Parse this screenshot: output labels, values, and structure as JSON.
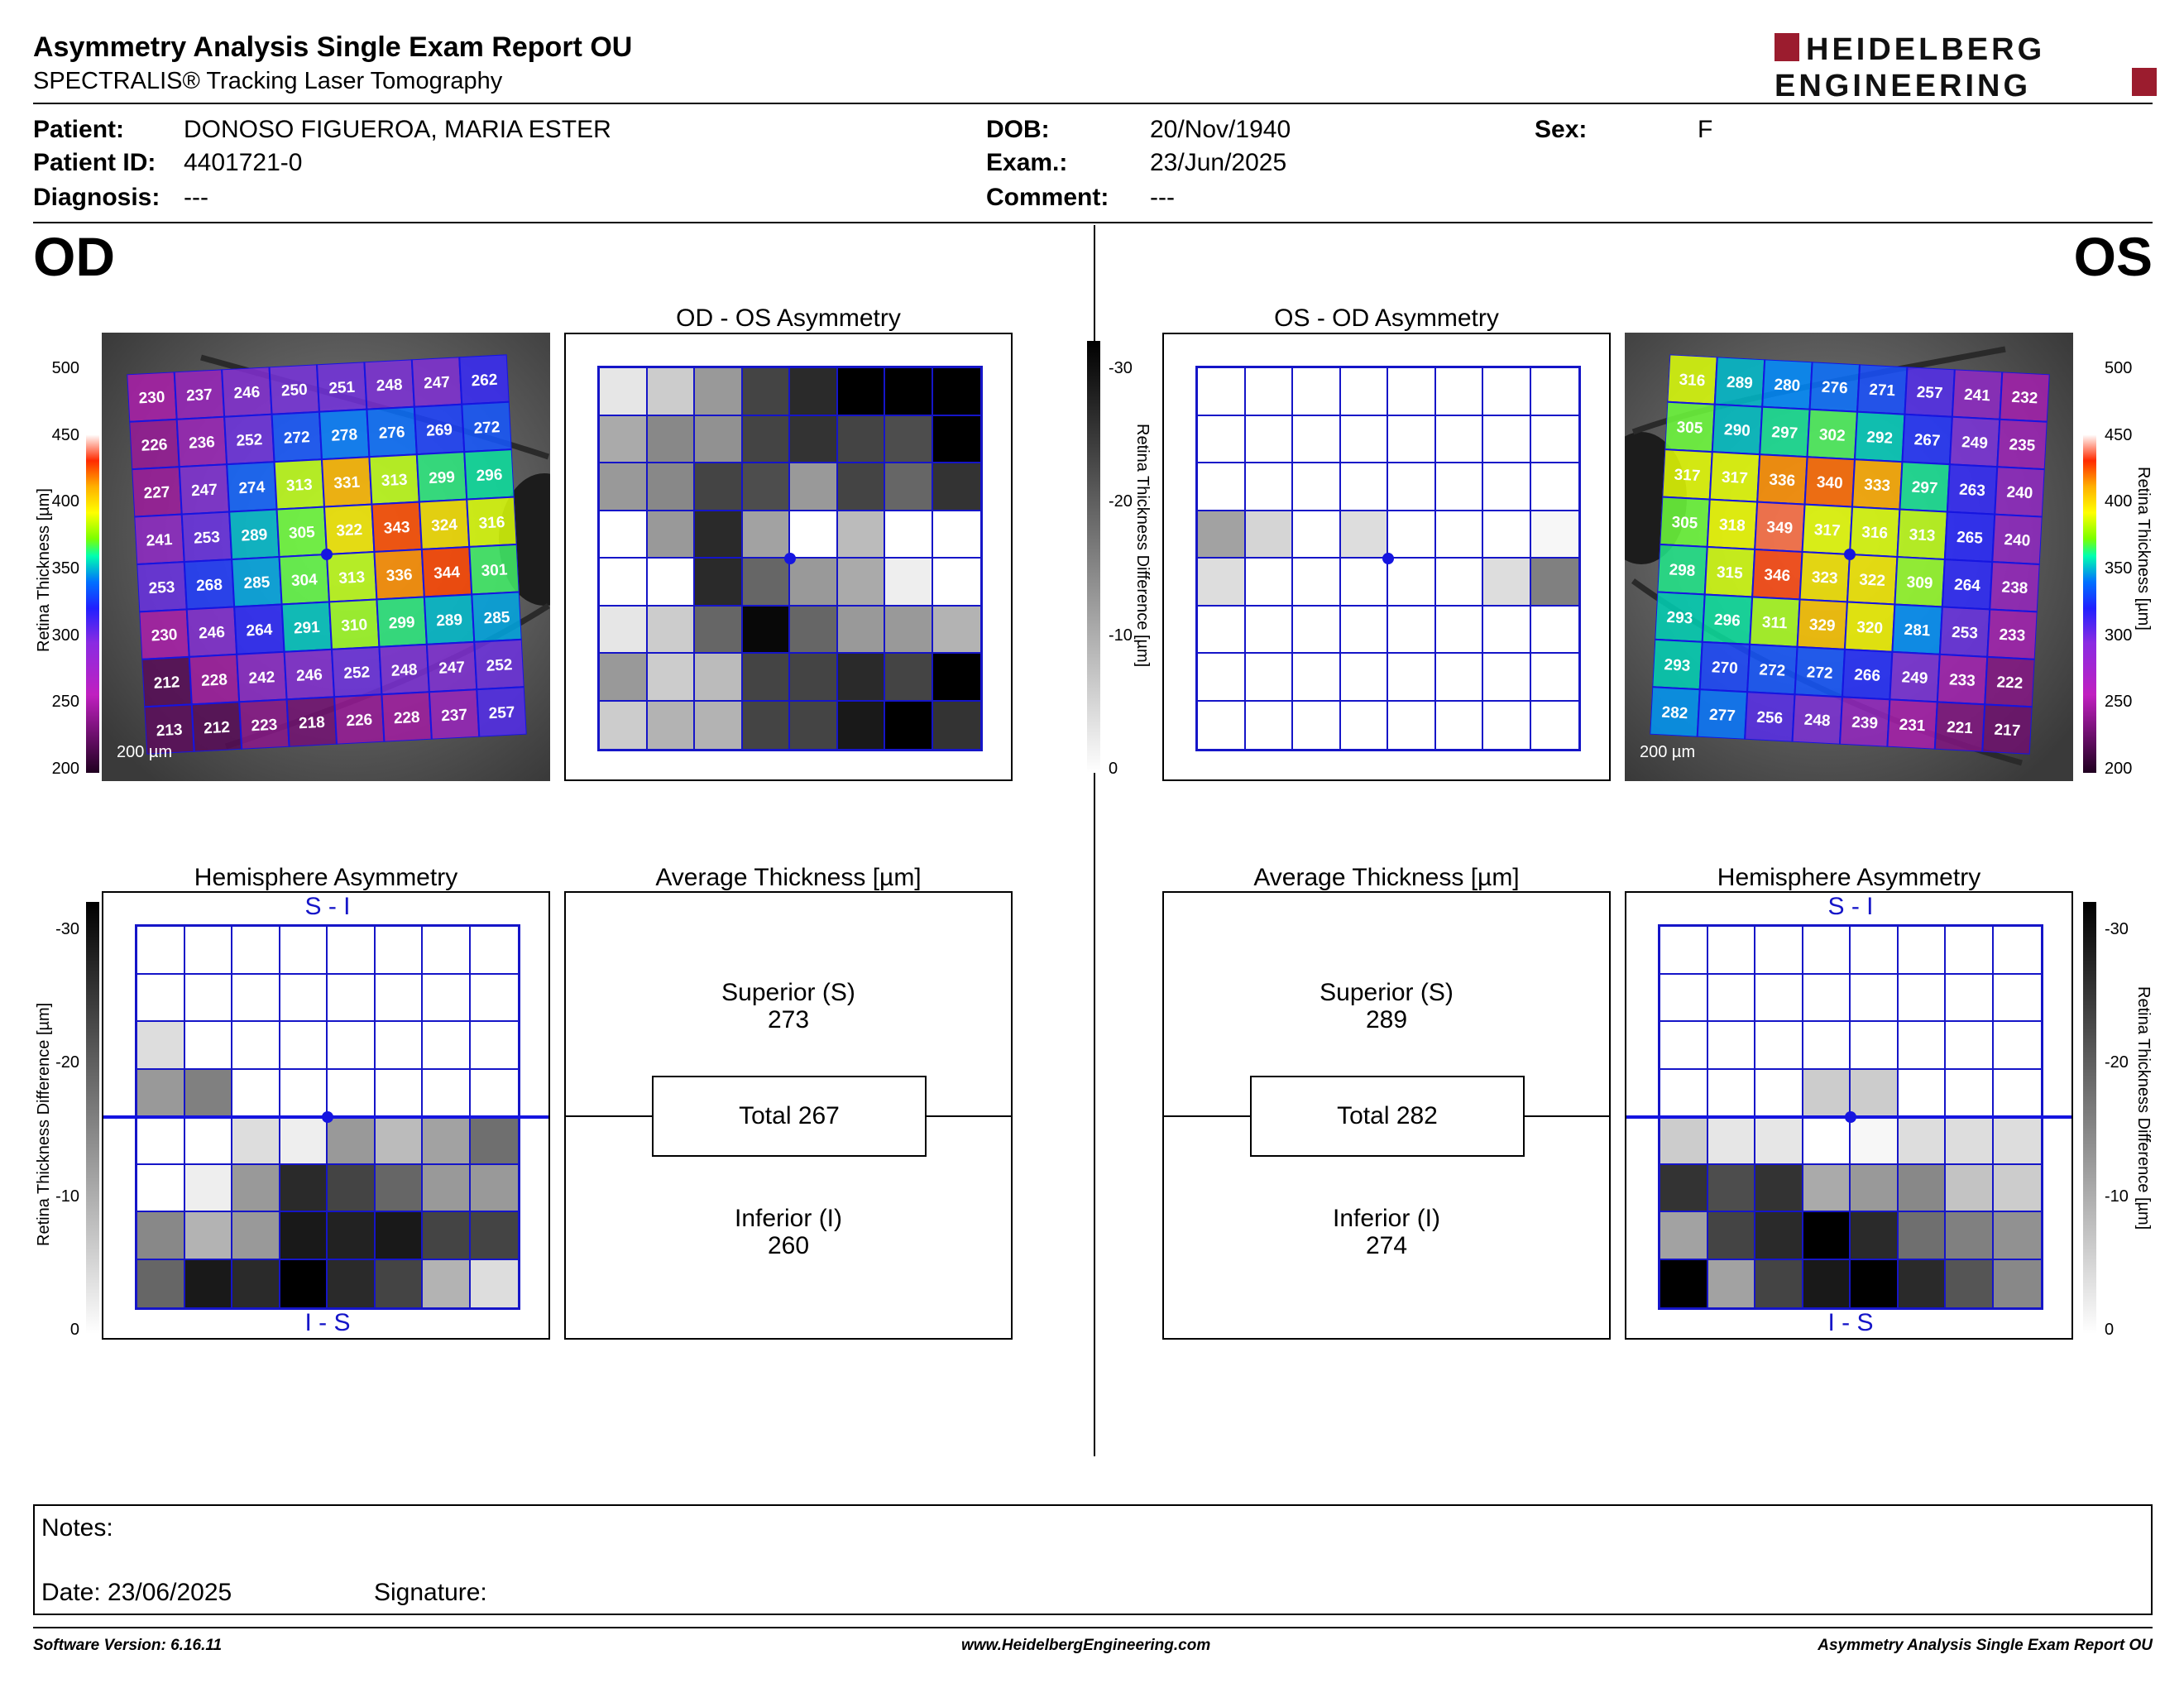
{
  "report": {
    "title": "Asymmetry Analysis Single Exam Report OU",
    "subtitle": "SPECTRALIS® Tracking Laser Tomography",
    "brand_line1": "HEIDELBERG",
    "brand_line2": "ENGINEERING",
    "brand_color": "#9b1c2e"
  },
  "patient": {
    "patient_label": "Patient:",
    "patient_value": "DONOSO FIGUEROA, MARIA ESTER",
    "id_label": "Patient ID:",
    "id_value": "4401721-0",
    "diagnosis_label": "Diagnosis:",
    "diagnosis_value": "---",
    "dob_label": "DOB:",
    "dob_value": "20/Nov/1940",
    "exam_label": "Exam.:",
    "exam_value": "23/Jun/2025",
    "comment_label": "Comment:",
    "comment_value": "---",
    "sex_label": "Sex:",
    "sex_value": "F"
  },
  "od": {
    "label": "OD",
    "asym_title": "OD - OS Asymmetry",
    "hemi_title": "Hemisphere Asymmetry",
    "avg_title": "Average Thickness [µm]",
    "scale_text": "200 µm",
    "thickness": [
      [
        230,
        237,
        246,
        250,
        251,
        248,
        247,
        262
      ],
      [
        226,
        236,
        252,
        272,
        278,
        276,
        269,
        272
      ],
      [
        227,
        247,
        274,
        313,
        331,
        313,
        299,
        296
      ],
      [
        241,
        253,
        289,
        305,
        322,
        343,
        324,
        316
      ],
      [
        253,
        268,
        285,
        304,
        313,
        336,
        344,
        301
      ],
      [
        230,
        246,
        264,
        291,
        310,
        299,
        289,
        285
      ],
      [
        212,
        228,
        242,
        246,
        252,
        248,
        247,
        252
      ],
      [
        213,
        212,
        223,
        218,
        226,
        228,
        237,
        257
      ]
    ],
    "asym_diff": [
      [
        -3,
        -6,
        -12,
        -22,
        -25,
        -30,
        -30,
        -30
      ],
      [
        -10,
        -14,
        -13,
        -22,
        -24,
        -22,
        -21,
        -30
      ],
      [
        -12,
        -14,
        -22,
        -21,
        -12,
        -22,
        -18,
        -24
      ],
      [
        0,
        -12,
        -25,
        -11,
        0,
        -8,
        0,
        0
      ],
      [
        0,
        0,
        -25,
        -18,
        -12,
        -10,
        -2,
        0
      ],
      [
        -3,
        -6,
        -18,
        -29,
        -18,
        -12,
        -12,
        -9
      ],
      [
        -12,
        -6,
        -8,
        -22,
        -22,
        -25,
        -22,
        -30
      ],
      [
        -6,
        -9,
        -9,
        -22,
        -22,
        -27,
        -30,
        -24
      ]
    ],
    "hemi_diff": [
      [
        0,
        0,
        0,
        0,
        0,
        0,
        0,
        0
      ],
      [
        0,
        0,
        0,
        0,
        0,
        0,
        0,
        0
      ],
      [
        -4,
        0,
        0,
        0,
        0,
        0,
        0,
        0
      ],
      [
        -12,
        -15,
        0,
        0,
        0,
        0,
        0,
        0
      ],
      [
        0,
        0,
        -4,
        -2,
        -12,
        -8,
        -11,
        -17
      ],
      [
        0,
        -2,
        -12,
        -25,
        -22,
        -18,
        -12,
        -12
      ],
      [
        -14,
        -9,
        -12,
        -27,
        -26,
        -27,
        -22,
        -22
      ],
      [
        -18,
        -27,
        -25,
        -31,
        -25,
        -22,
        -9,
        -4
      ]
    ],
    "superior_label": "Superior (S)",
    "superior_value": "273",
    "total_label": "Total 267",
    "inferior_label": "Inferior (I)",
    "inferior_value": "260",
    "hemi_top": "S - I",
    "hemi_bottom": "I - S"
  },
  "os": {
    "label": "OS",
    "asym_title": "OS - OD Asymmetry",
    "hemi_title": "Hemisphere Asymmetry",
    "avg_title": "Average Thickness [µm]",
    "scale_text": "200 µm",
    "thickness": [
      [
        316,
        289,
        280,
        276,
        271,
        257,
        241,
        232
      ],
      [
        305,
        290,
        297,
        302,
        292,
        267,
        249,
        235
      ],
      [
        317,
        317,
        336,
        340,
        333,
        297,
        263,
        240
      ],
      [
        305,
        318,
        349,
        317,
        316,
        313,
        265,
        240
      ],
      [
        298,
        315,
        346,
        323,
        322,
        309,
        264,
        238
      ],
      [
        293,
        296,
        311,
        329,
        320,
        281,
        253,
        233
      ],
      [
        293,
        270,
        272,
        272,
        266,
        249,
        233,
        222
      ],
      [
        282,
        277,
        256,
        248,
        239,
        231,
        221,
        217
      ]
    ],
    "asym_diff": [
      [
        0,
        0,
        0,
        0,
        0,
        0,
        0,
        0
      ],
      [
        0,
        0,
        0,
        0,
        0,
        0,
        0,
        0
      ],
      [
        0,
        0,
        0,
        0,
        0,
        0,
        0,
        0
      ],
      [
        -11,
        -5,
        0,
        -4,
        0,
        0,
        0,
        -1
      ],
      [
        -4,
        0,
        0,
        0,
        0,
        0,
        -4,
        -15
      ],
      [
        0,
        0,
        0,
        0,
        0,
        0,
        0,
        0
      ],
      [
        0,
        0,
        0,
        0,
        0,
        0,
        0,
        0
      ],
      [
        0,
        0,
        0,
        0,
        0,
        0,
        0,
        0
      ]
    ],
    "hemi_diff": [
      [
        0,
        0,
        0,
        0,
        0,
        0,
        0,
        0
      ],
      [
        0,
        0,
        0,
        0,
        0,
        0,
        0,
        0
      ],
      [
        0,
        0,
        0,
        0,
        0,
        0,
        0,
        0
      ],
      [
        0,
        0,
        0,
        -6,
        -6,
        0,
        0,
        0
      ],
      [
        -6,
        -3,
        -3,
        0,
        -1,
        -4,
        -4,
        -4
      ],
      [
        -24,
        -21,
        -24,
        -10,
        -12,
        -14,
        -7,
        -6
      ],
      [
        -11,
        -22,
        -25,
        -31,
        -25,
        -17,
        -15,
        -13
      ],
      [
        -31,
        -11,
        -22,
        -27,
        -31,
        -25,
        -20,
        -14
      ]
    ],
    "superior_label": "Superior (S)",
    "superior_value": "289",
    "total_label": "Total 282",
    "inferior_label": "Inferior (I)",
    "inferior_value": "274",
    "hemi_top": "S - I",
    "hemi_bottom": "I - S"
  },
  "thickness_scale": {
    "ticks": [
      "500",
      "450",
      "400",
      "350",
      "300",
      "250",
      "200"
    ],
    "axis_label": "Retina  Thickness [µm]"
  },
  "diff_scale": {
    "ticks": [
      "-30",
      "-20",
      "-10",
      "0"
    ],
    "axis_label": "Retina Thickness Difference [µm]"
  },
  "notes": {
    "notes_label": "Notes:",
    "date_label": "Date: 23/06/2025",
    "signature_label": "Signature:"
  },
  "footer": {
    "software": "Software Version: 6.16.11",
    "website": "www.HeidelbergEngineering.com",
    "report_name": "Asymmetry Analysis Single Exam Report OU"
  }
}
